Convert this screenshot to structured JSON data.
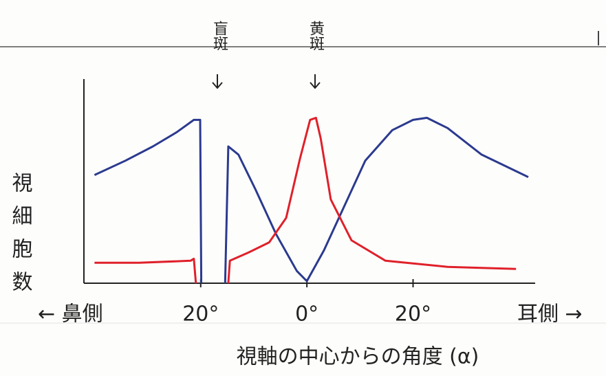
{
  "chart_data": {
    "type": "line",
    "y_label": "視細胞数",
    "x_label": "視軸の中心からの角度 (α)",
    "x_left_label": "← 鼻側",
    "x_right_label": "耳側 →",
    "annotations": [
      "盲斑",
      "黄斑"
    ],
    "xlim": [
      -42,
      43
    ],
    "xticks": [
      {
        "value": -20,
        "label": "20°"
      },
      {
        "value": 0,
        "label": "0°"
      },
      {
        "value": 20,
        "label": "20°"
      }
    ],
    "ylim": [
      0,
      100
    ],
    "series": [
      {
        "color": "#2b3a8f",
        "x": [
          -40,
          -34.2,
          -29,
          -24.5,
          -21.3,
          -20.1,
          -19.9,
          -18,
          -15.4,
          -14.8,
          -12.9,
          -9.7,
          -5.8,
          -1.9,
          0,
          3.2,
          7.1,
          11,
          16.1,
          20,
          22.6,
          26.5,
          32.9,
          41.7
        ],
        "values": [
          53,
          60,
          67,
          74,
          80,
          80,
          0,
          null,
          0,
          67,
          63,
          46,
          24,
          6,
          1,
          16,
          38,
          60,
          75,
          80,
          81,
          76,
          63,
          52
        ]
      },
      {
        "color": "#e0202a",
        "x": [
          -40,
          -31.6,
          -21.9,
          -21.3,
          -20.9,
          -18,
          -14.8,
          -14.5,
          -11,
          -7.1,
          -3.9,
          -1.3,
          0.6,
          1.7,
          2.6,
          4.5,
          8.4,
          14.8,
          26.5,
          39.4
        ],
        "values": [
          10,
          10,
          11,
          12,
          0,
          null,
          0,
          11,
          15,
          20,
          32,
          61,
          80,
          81,
          71,
          41,
          21,
          11,
          8,
          7
        ]
      }
    ]
  }
}
